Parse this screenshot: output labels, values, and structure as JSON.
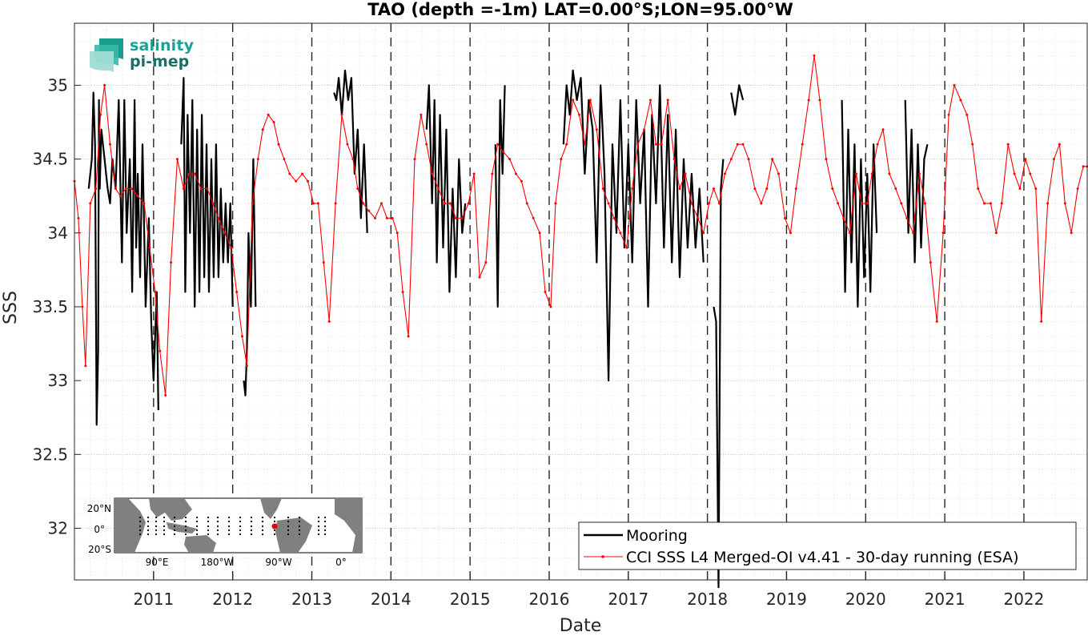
{
  "chart_data": {
    "type": "line",
    "title": "TAO (depth =-1m) LAT=0.00°S;LON=95.00°W",
    "xlabel": "Date",
    "ylabel": "SSS",
    "xlim": [
      2010.0,
      2022.8
    ],
    "ylim": [
      31.65,
      35.42
    ],
    "x_ticks": [
      2011,
      2012,
      2013,
      2014,
      2015,
      2016,
      2017,
      2018,
      2019,
      2020,
      2021,
      2022
    ],
    "x_tick_labels": [
      "2011",
      "2012",
      "2013",
      "2014",
      "2015",
      "2016",
      "2017",
      "2018",
      "2019",
      "2020",
      "2021",
      "2022"
    ],
    "y_ticks": [
      32,
      32.5,
      33,
      33.5,
      34,
      34.5,
      35
    ],
    "y_tick_labels": [
      "32",
      "32.5",
      "33",
      "33.5",
      "34",
      "34.5",
      "35"
    ],
    "grid": true,
    "year_boundaries": [
      2011,
      2012,
      2013,
      2014,
      2015,
      2016,
      2017,
      2018,
      2019,
      2020,
      2021,
      2022
    ],
    "legend_position": "bottom-right",
    "series": [
      {
        "name": "Mooring",
        "color": "#000000",
        "style": "solid",
        "segments": [
          {
            "x": [
              2010.18,
              2010.22,
              2010.24,
              2010.26,
              2010.28,
              2010.3,
              2010.31,
              2010.32,
              2010.34,
              2010.36,
              2010.38,
              2010.4,
              2010.42,
              2010.45,
              2010.48,
              2010.52,
              2010.56,
              2010.6,
              2010.63,
              2010.66,
              2010.7,
              2010.73,
              2010.76,
              2010.78,
              2010.8,
              2010.83,
              2010.86,
              2010.9,
              2010.94,
              2010.97,
              2011.0,
              2011.04,
              2011.06
            ],
            "y": [
              34.3,
              34.5,
              34.95,
              34.6,
              32.7,
              33.2,
              34.9,
              34.3,
              34.7,
              34.6,
              34.5,
              34.4,
              34.3,
              34.2,
              34.5,
              34.3,
              34.9,
              33.8,
              34.9,
              34.0,
              34.5,
              33.6,
              34.9,
              33.9,
              34.4,
              33.7,
              34.6,
              33.5,
              34.1,
              33.4,
              33.0,
              33.6,
              32.8
            ]
          },
          {
            "x": [
              2011.35,
              2011.38,
              2011.4,
              2011.43,
              2011.46,
              2011.49,
              2011.52,
              2011.55,
              2011.58,
              2011.61,
              2011.64,
              2011.67,
              2011.7,
              2011.73,
              2011.76,
              2011.79,
              2011.82,
              2011.85,
              2011.88,
              2011.91,
              2011.94,
              2011.97,
              2012.0
            ],
            "y": [
              34.6,
              35.05,
              33.6,
              34.8,
              34.0,
              34.9,
              33.5,
              34.7,
              33.6,
              34.8,
              33.7,
              34.6,
              33.6,
              34.5,
              33.7,
              34.6,
              33.7,
              34.3,
              33.8,
              34.2,
              33.8,
              34.2,
              33.5
            ]
          },
          {
            "x": [
              2012.14,
              2012.16,
              2012.18,
              2012.2,
              2012.23,
              2012.26,
              2012.29
            ],
            "y": [
              33.0,
              32.9,
              33.2,
              34.0,
              33.5,
              34.5,
              33.5
            ]
          },
          {
            "x": [
              2013.28,
              2013.31,
              2013.34,
              2013.38,
              2013.42,
              2013.46,
              2013.5,
              2013.54,
              2013.58,
              2013.62,
              2013.66,
              2013.7
            ],
            "y": [
              34.95,
              34.9,
              35.05,
              34.8,
              35.1,
              34.9,
              35.05,
              34.4,
              34.7,
              34.1,
              34.6,
              34.0
            ]
          },
          {
            "x": [
              2014.45,
              2014.48,
              2014.52,
              2014.55,
              2014.58,
              2014.62,
              2014.66,
              2014.7,
              2014.74,
              2014.78,
              2014.82,
              2014.86,
              2014.9,
              2014.94
            ],
            "y": [
              34.7,
              35.0,
              34.2,
              34.9,
              33.8,
              34.8,
              33.9,
              34.7,
              33.6,
              34.3,
              33.7,
              34.5,
              34.0,
              34.2
            ]
          },
          {
            "x": [
              2015.32,
              2015.35,
              2015.38,
              2015.41,
              2015.44
            ],
            "y": [
              34.6,
              33.5,
              34.9,
              34.4,
              35.0
            ]
          },
          {
            "x": [
              2016.18,
              2016.22,
              2016.26,
              2016.3,
              2016.35,
              2016.4,
              2016.45,
              2016.5,
              2016.55,
              2016.6,
              2016.65,
              2016.7,
              2016.75,
              2016.8,
              2016.85,
              2016.9,
              2016.95,
              2017.0,
              2017.05,
              2017.1,
              2017.15,
              2017.2,
              2017.25,
              2017.3,
              2017.35,
              2017.4,
              2017.45,
              2017.5,
              2017.55,
              2017.6,
              2017.65,
              2017.7,
              2017.75,
              2017.8,
              2017.85,
              2017.9,
              2017.95
            ],
            "y": [
              34.6,
              35.0,
              34.8,
              35.1,
              34.9,
              35.05,
              34.4,
              34.9,
              34.7,
              33.8,
              35.0,
              34.4,
              33.0,
              34.6,
              34.0,
              34.9,
              33.9,
              34.6,
              33.8,
              34.9,
              34.2,
              34.7,
              33.5,
              34.8,
              34.2,
              35.0,
              33.9,
              34.8,
              33.8,
              34.7,
              33.7,
              34.5,
              33.9,
              34.4,
              33.9,
              34.3,
              33.8
            ]
          },
          {
            "x": [
              2018.08,
              2018.11,
              2018.14,
              2018.17,
              2018.2
            ],
            "y": [
              33.5,
              33.4,
              31.6,
              34.3,
              34.5
            ]
          },
          {
            "x": [
              2018.3,
              2018.35,
              2018.4,
              2018.45
            ],
            "y": [
              34.95,
              34.8,
              35.0,
              34.9
            ]
          },
          {
            "x": [
              2019.7,
              2019.74,
              2019.78,
              2019.82,
              2019.86,
              2019.9,
              2019.94,
              2019.98,
              2020.02,
              2020.06,
              2020.1,
              2020.14
            ],
            "y": [
              34.9,
              33.6,
              34.7,
              33.8,
              34.6,
              33.5,
              34.5,
              33.7,
              34.4,
              33.6,
              34.6,
              34.0
            ]
          },
          {
            "x": [
              2020.5,
              2020.54,
              2020.58,
              2020.62,
              2020.66,
              2020.7,
              2020.74,
              2020.78
            ],
            "y": [
              34.9,
              34.0,
              34.7,
              33.8,
              34.6,
              33.9,
              34.5,
              34.6
            ]
          }
        ]
      },
      {
        "name": "CCI SSS L4 Merged-OI v4.41 - 30-day running (ESA)",
        "color": "#ff0000",
        "style": "solid-with-dot-markers",
        "x": [
          2010.0,
          2010.05,
          2010.1,
          2010.14,
          2010.2,
          2010.27,
          2010.33,
          2010.38,
          2010.45,
          2010.52,
          2010.58,
          2010.65,
          2010.72,
          2010.8,
          2010.88,
          2010.95,
          2011.02,
          2011.08,
          2011.15,
          2011.22,
          2011.3,
          2011.38,
          2011.45,
          2011.52,
          2011.6,
          2011.68,
          2011.75,
          2011.82,
          2011.9,
          2011.98,
          2012.05,
          2012.12,
          2012.18,
          2012.25,
          2012.32,
          2012.38,
          2012.45,
          2012.52,
          2012.58,
          2012.65,
          2012.72,
          2012.8,
          2012.88,
          2012.95,
          2013.02,
          2013.08,
          2013.15,
          2013.22,
          2013.3,
          2013.38,
          2013.45,
          2013.52,
          2013.58,
          2013.65,
          2013.72,
          2013.8,
          2013.88,
          2013.95,
          2014.02,
          2014.08,
          2014.15,
          2014.22,
          2014.3,
          2014.38,
          2014.45,
          2014.52,
          2014.6,
          2014.68,
          2014.75,
          2014.82,
          2014.9,
          2014.98,
          2015.05,
          2015.12,
          2015.2,
          2015.28,
          2015.35,
          2015.42,
          2015.5,
          2015.58,
          2015.65,
          2015.72,
          2015.8,
          2015.88,
          2015.95,
          2016.02,
          2016.08,
          2016.15,
          2016.22,
          2016.3,
          2016.38,
          2016.45,
          2016.52,
          2016.6,
          2016.68,
          2016.75,
          2016.82,
          2016.9,
          2016.98,
          2017.05,
          2017.12,
          2017.2,
          2017.28,
          2017.35,
          2017.42,
          2017.5,
          2017.58,
          2017.65,
          2017.72,
          2017.8,
          2017.88,
          2017.95,
          2018.02,
          2018.08,
          2018.15,
          2018.22,
          2018.3,
          2018.38,
          2018.45,
          2018.52,
          2018.6,
          2018.68,
          2018.75,
          2018.82,
          2018.9,
          2018.98,
          2019.05,
          2019.12,
          2019.2,
          2019.28,
          2019.35,
          2019.42,
          2019.5,
          2019.58,
          2019.65,
          2019.72,
          2019.8,
          2019.88,
          2019.95,
          2020.02,
          2020.08,
          2020.15,
          2020.22,
          2020.3,
          2020.38,
          2020.45,
          2020.52,
          2020.6,
          2020.68,
          2020.75,
          2020.82,
          2020.9,
          2020.98,
          2021.05,
          2021.12,
          2021.2,
          2021.28,
          2021.35,
          2021.42,
          2021.5,
          2021.58,
          2021.65,
          2021.72,
          2021.8,
          2021.88,
          2021.95,
          2022.02,
          2022.08,
          2022.15,
          2022.22,
          2022.3,
          2022.38,
          2022.45,
          2022.52,
          2022.6,
          2022.68,
          2022.75,
          2022.8
        ],
        "y": [
          34.35,
          34.1,
          33.5,
          33.1,
          34.2,
          34.3,
          34.8,
          35.0,
          34.6,
          34.3,
          34.25,
          34.3,
          34.3,
          34.25,
          34.2,
          33.9,
          33.6,
          33.2,
          32.9,
          33.8,
          34.5,
          34.3,
          34.4,
          34.4,
          34.3,
          34.3,
          34.2,
          34.1,
          34.0,
          33.9,
          33.6,
          33.3,
          33.1,
          34.2,
          34.5,
          34.7,
          34.8,
          34.75,
          34.6,
          34.5,
          34.4,
          34.35,
          34.4,
          34.35,
          34.2,
          34.2,
          33.8,
          33.4,
          34.2,
          34.8,
          34.6,
          34.5,
          34.3,
          34.2,
          34.15,
          34.1,
          34.2,
          34.1,
          34.1,
          34.0,
          33.6,
          33.3,
          34.5,
          34.8,
          34.6,
          34.4,
          34.3,
          34.2,
          34.2,
          34.1,
          34.1,
          34.2,
          34.4,
          33.7,
          33.8,
          34.4,
          34.6,
          34.55,
          34.5,
          34.4,
          34.35,
          34.2,
          34.1,
          34.0,
          33.6,
          33.5,
          34.2,
          34.5,
          34.6,
          34.9,
          34.8,
          34.6,
          34.9,
          34.7,
          34.3,
          34.2,
          34.1,
          34.0,
          33.9,
          34.3,
          34.6,
          34.7,
          34.9,
          34.6,
          34.6,
          34.9,
          34.5,
          34.3,
          34.4,
          34.2,
          34.1,
          34.0,
          34.2,
          34.3,
          34.2,
          34.4,
          34.5,
          34.6,
          34.6,
          34.5,
          34.3,
          34.2,
          34.3,
          34.5,
          34.4,
          34.1,
          34.0,
          34.3,
          34.6,
          34.9,
          35.2,
          34.9,
          34.5,
          34.3,
          34.2,
          34.1,
          34.0,
          34.4,
          34.2,
          34.2,
          34.4,
          34.6,
          34.7,
          34.4,
          34.3,
          34.2,
          34.1,
          34.0,
          34.4,
          34.2,
          33.8,
          33.4,
          34.0,
          34.8,
          35.0,
          34.9,
          34.8,
          34.6,
          34.3,
          34.2,
          34.2,
          34.0,
          34.2,
          34.6,
          34.4,
          34.3,
          34.5,
          34.4,
          34.3,
          33.4,
          34.2,
          34.5,
          34.6,
          34.2,
          34.0,
          34.3,
          34.45,
          34.45
        ]
      }
    ],
    "legend": {
      "entries": [
        "Mooring",
        "CCI SSS L4 Merged-OI v4.41 - 30-day running (ESA)"
      ]
    }
  },
  "logo": {
    "line1": "salinity",
    "line2": "pi-mep"
  },
  "inset_map": {
    "y_labels": [
      "20°N",
      "0°",
      "20°S"
    ],
    "x_labels": [
      "90°E",
      "180°W",
      "90°W",
      "0°"
    ]
  },
  "colors": {
    "mooring": "#000000",
    "cci": "#ff0000",
    "grid": "#d9d9d9",
    "boundary": "#262626",
    "land": "#808080",
    "logo_teal": "#19a394"
  }
}
